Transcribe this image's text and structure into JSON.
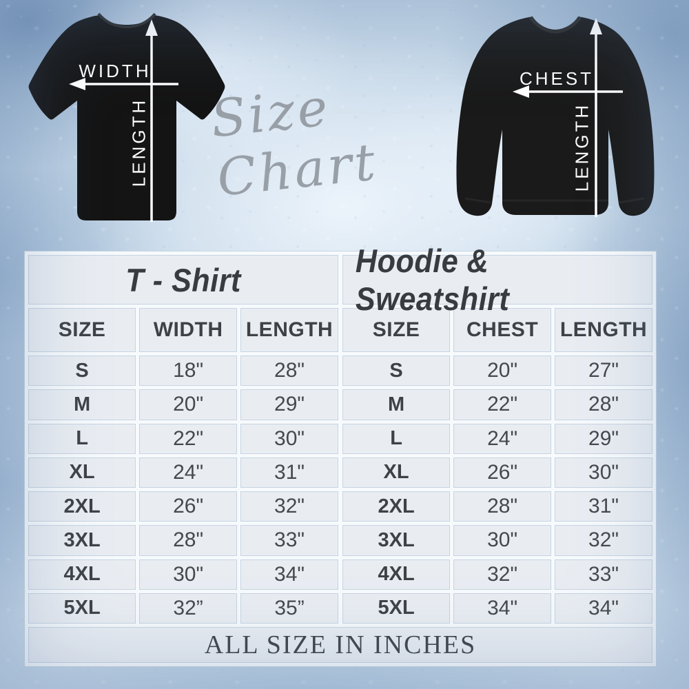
{
  "script_title": "Size Chart",
  "diagram": {
    "tshirt": {
      "width_label": "WIDTH",
      "length_label": "LENGTH"
    },
    "hoodie": {
      "chest_label": "CHEST",
      "length_label": "LENGTH"
    }
  },
  "tshirt_table": {
    "title": "T - Shirt",
    "columns": [
      "SIZE",
      "WIDTH",
      "LENGTH"
    ],
    "rows": [
      [
        "S",
        "18\"",
        "28\""
      ],
      [
        "M",
        "20\"",
        "29\""
      ],
      [
        "L",
        "22\"",
        "30\""
      ],
      [
        "XL",
        "24\"",
        "31\""
      ],
      [
        "2XL",
        "26\"",
        "32\""
      ],
      [
        "3XL",
        "28\"",
        "33\""
      ],
      [
        "4XL",
        "30\"",
        "34\""
      ],
      [
        "5XL",
        "32”",
        "35”"
      ]
    ]
  },
  "hoodie_table": {
    "title": "Hoodie & Sweatshirt",
    "columns": [
      "SIZE",
      "CHEST",
      "LENGTH"
    ],
    "rows": [
      [
        "S",
        "20\"",
        "27\""
      ],
      [
        "M",
        "22\"",
        "28\""
      ],
      [
        "L",
        "24\"",
        "29\""
      ],
      [
        "XL",
        "26\"",
        "30\""
      ],
      [
        "2XL",
        "28\"",
        "31\""
      ],
      [
        "3XL",
        "30\"",
        "32\""
      ],
      [
        "4XL",
        "32\"",
        "33\""
      ],
      [
        "5XL",
        "34\"",
        "34\""
      ]
    ]
  },
  "footer": "ALL SIZE IN INCHES",
  "colors": {
    "background": "#c6d8e8",
    "table_cell": "#e9edf2",
    "table_gap": "#f7fafc",
    "table_border": "#c6d4e2",
    "text": "#3e4247",
    "script_text": "#989fa7",
    "garment": "#171717",
    "arrow": "#ffffff"
  }
}
